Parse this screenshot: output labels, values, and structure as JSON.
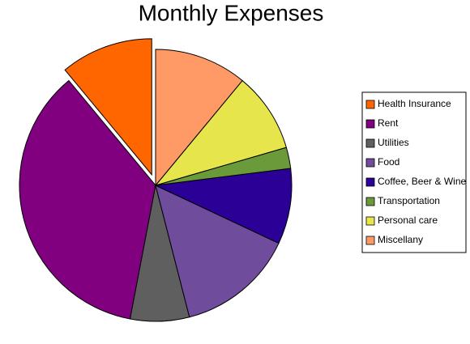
{
  "chart_data": {
    "type": "pie",
    "title": "Monthly Expenses",
    "categories": [
      "Health Insurance",
      "Rent",
      "Utilities",
      "Food",
      "Coffee, Beer & Wine",
      "Transportation",
      "Personal care",
      "Miscellany"
    ],
    "values": [
      11,
      36,
      7,
      14,
      9,
      2.5,
      9.5,
      11
    ],
    "colors": [
      "#ff6600",
      "#800080",
      "#5f5f5f",
      "#6f4c9c",
      "#2a0096",
      "#6b9a3a",
      "#e6e64c",
      "#ff9966"
    ],
    "exploded": [
      "Health Insurance"
    ],
    "legend": "right"
  }
}
